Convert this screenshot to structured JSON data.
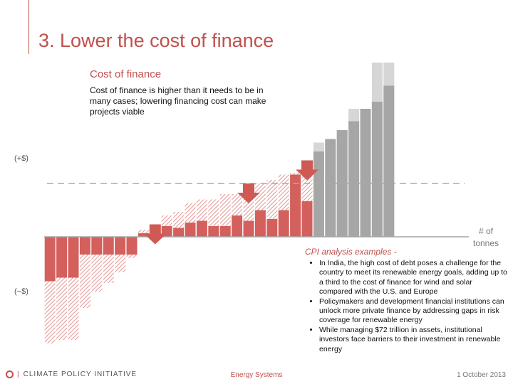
{
  "slide": {
    "title": "3. Lower the cost of finance",
    "subtitle": "Cost of finance",
    "description": "Cost of finance is higher than it needs to be in many cases; lowering financing cost can make projects viable"
  },
  "chart_data": {
    "type": "bar",
    "y_label_positive": "(+$)",
    "y_label_negative": "(−$)",
    "x_label_line1": "# of",
    "x_label_line2": "tonnes",
    "colors": {
      "red": "#d3605d",
      "hatch": "#e29e9c",
      "light": "#e8cfcf",
      "gray": "#a6a6a6",
      "lightgray": "#d6d6d6",
      "baseline": "#a6a6a6",
      "threshold": "#aaaaaa"
    },
    "threshold": 30,
    "reduced_values": [
      -25,
      -23,
      -23,
      -10,
      -10,
      -10,
      -10,
      -10,
      2,
      6,
      6,
      5,
      8,
      9,
      6,
      6,
      12,
      9,
      15,
      10,
      15,
      35,
      20,
      48,
      55,
      60,
      65,
      72,
      76,
      85
    ],
    "original_values": [
      -60,
      -58,
      -58,
      -40,
      -31,
      -26,
      -20,
      -12,
      4,
      7,
      12,
      14,
      19,
      21,
      21,
      24,
      24,
      30,
      30,
      32,
      35,
      36,
      43,
      53,
      53,
      60,
      72,
      72,
      98,
      98
    ],
    "arrows_at": [
      9,
      17,
      22
    ],
    "bars": [
      {
        "type": "red"
      },
      {
        "type": "red"
      },
      {
        "type": "red"
      },
      {
        "type": "red"
      },
      {
        "type": "red"
      },
      {
        "type": "red"
      },
      {
        "type": "red"
      },
      {
        "type": "red"
      },
      {
        "type": "red"
      },
      {
        "type": "red"
      },
      {
        "type": "red"
      },
      {
        "type": "red"
      },
      {
        "type": "red"
      },
      {
        "type": "red"
      },
      {
        "type": "red"
      },
      {
        "type": "red"
      },
      {
        "type": "red"
      },
      {
        "type": "red"
      },
      {
        "type": "red"
      },
      {
        "type": "red"
      },
      {
        "type": "red"
      },
      {
        "type": "red"
      },
      {
        "type": "red"
      },
      {
        "type": "gray"
      },
      {
        "type": "gray"
      },
      {
        "type": "gray"
      },
      {
        "type": "gray"
      },
      {
        "type": "gray"
      },
      {
        "type": "gray"
      },
      {
        "type": "gray"
      }
    ]
  },
  "cpi": {
    "heading": "CPI analysis examples -",
    "bullets": [
      "In India, the high cost of debt poses a challenge for the country to meet its renewable energy goals, adding up to a third to the cost of finance for wind and solar compared with the U.S. and Europe",
      "Policymakers and development financial institutions can unlock more private finance by addressing gaps in risk coverage for renewable energy",
      "While managing $72 trillion in assets, institutional investors face barriers to their investment in renewable energy"
    ]
  },
  "footer": {
    "brand": "CLIMATE POLICY INITIATIVE",
    "center": "Energy Systems",
    "date": "1 October 2013"
  }
}
